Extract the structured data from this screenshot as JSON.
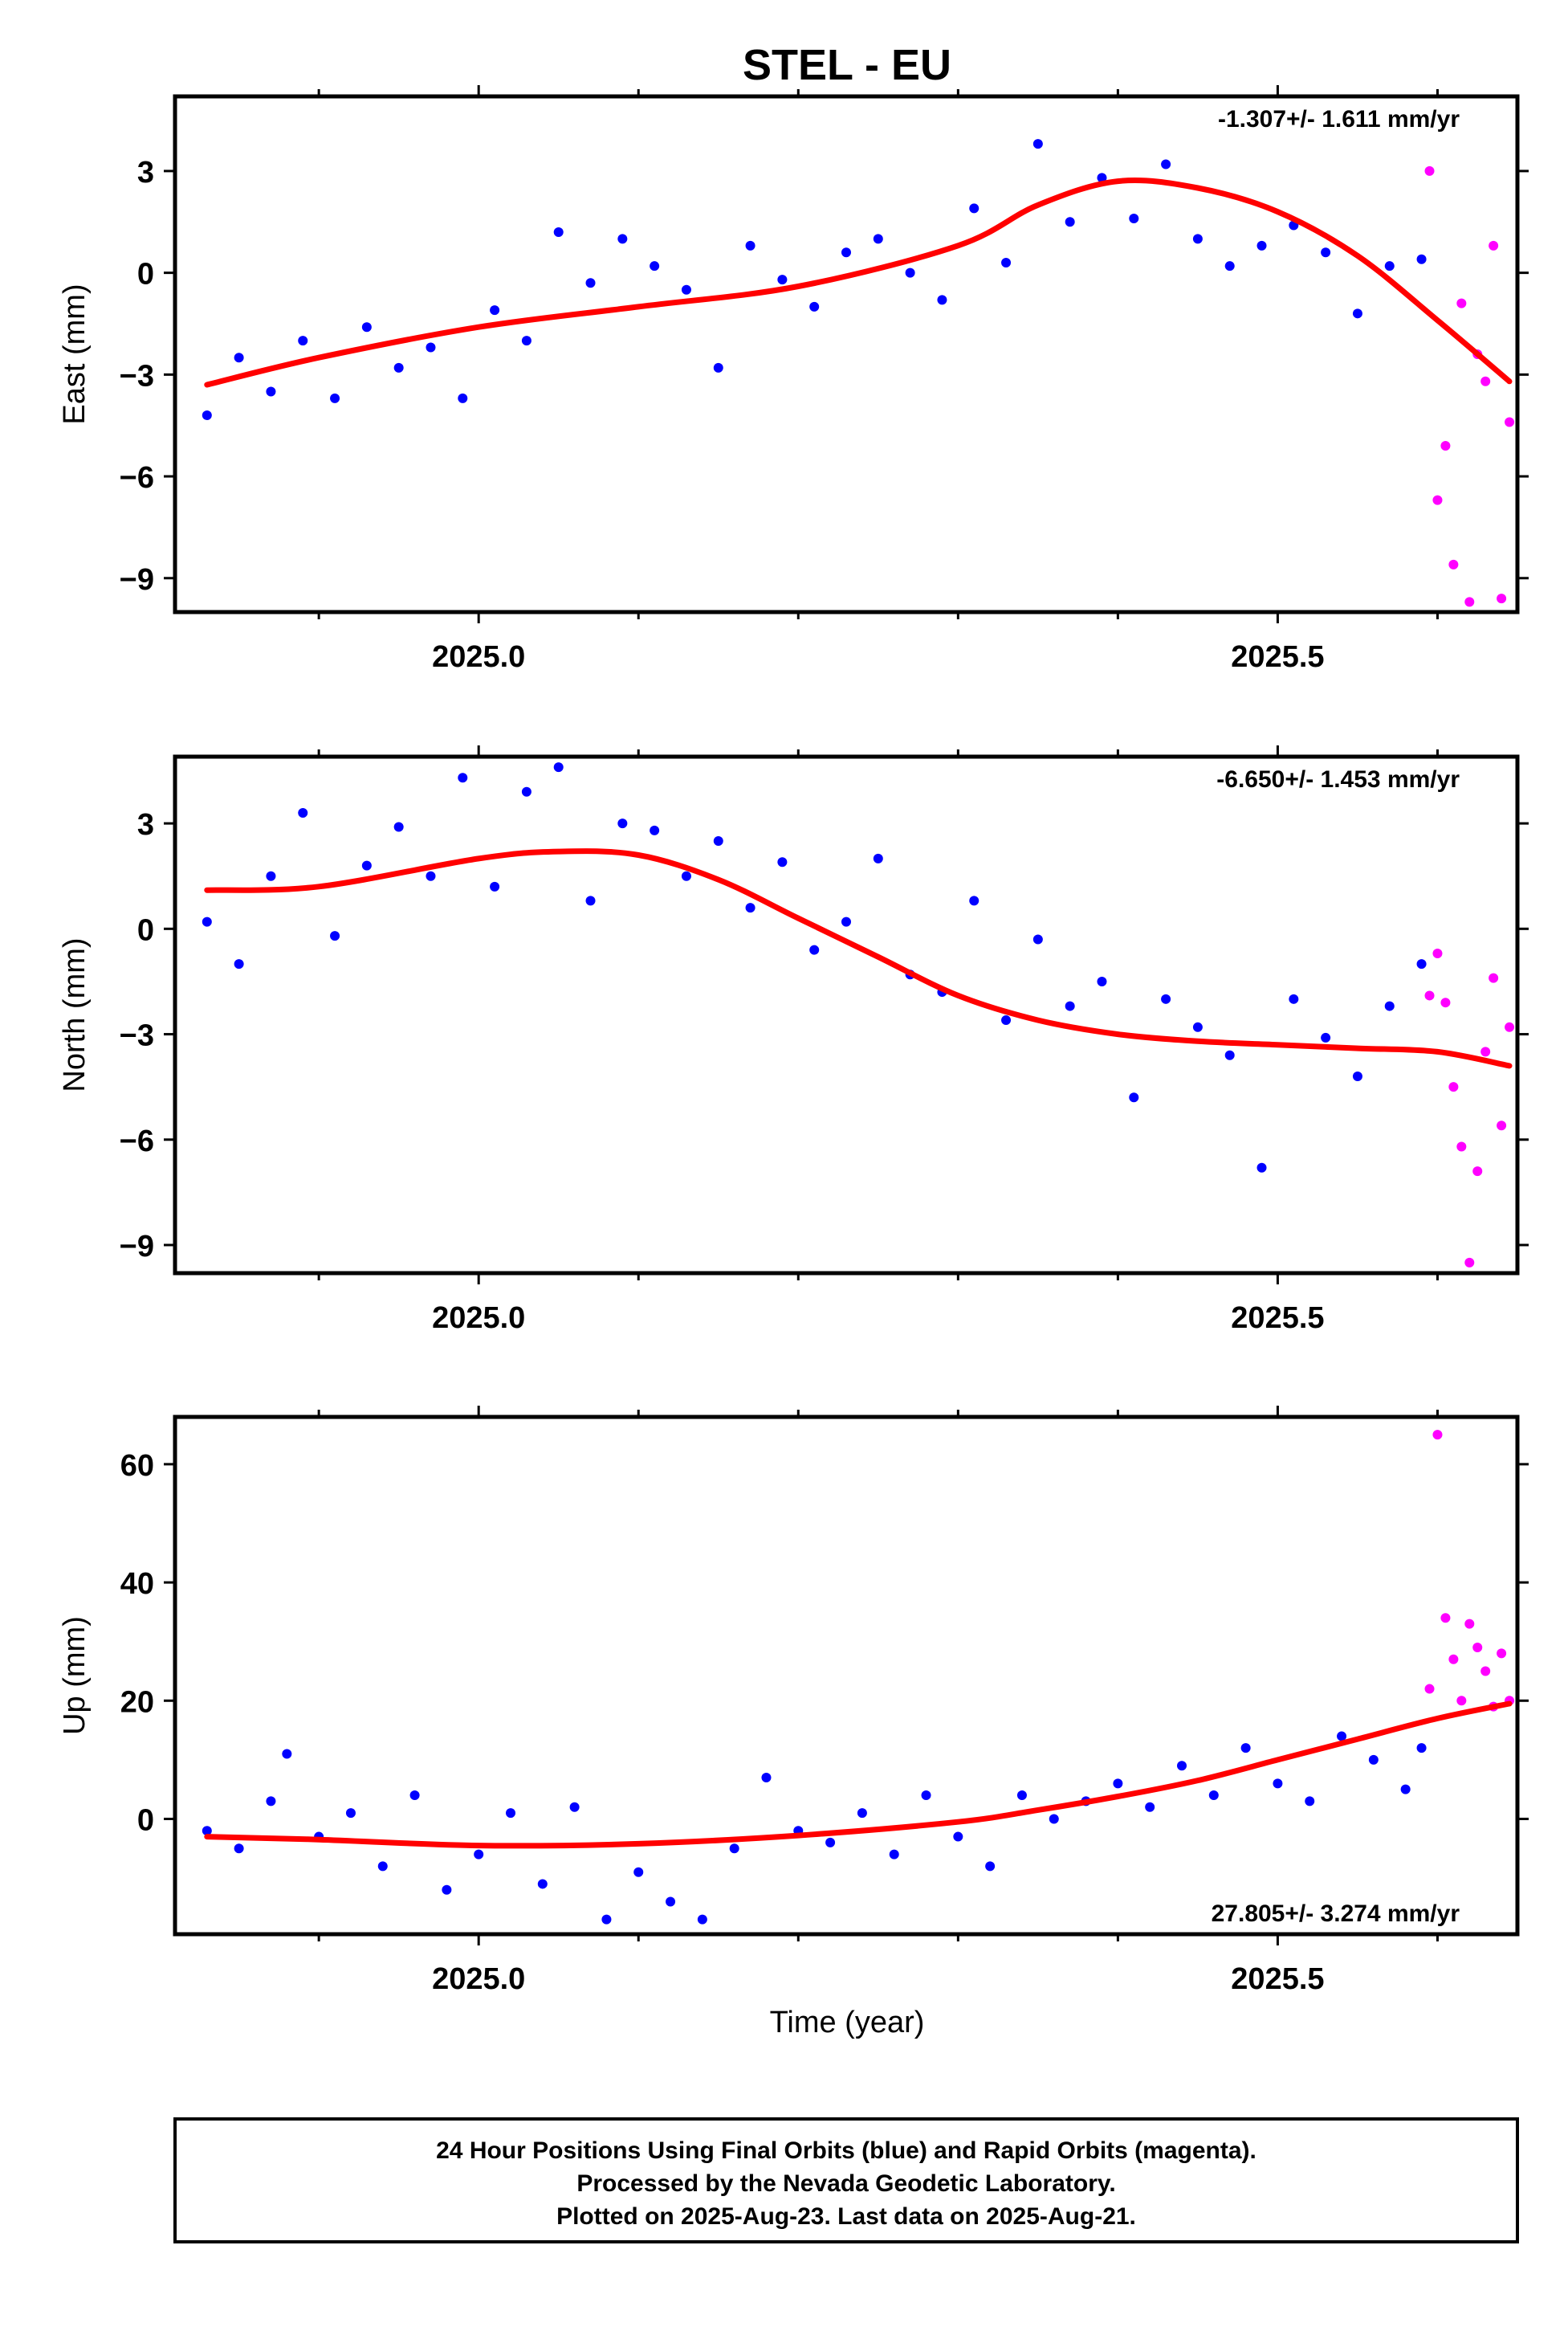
{
  "title": "STEL - EU",
  "xlabel": "Time (year)",
  "colors": {
    "final": "#0000ff",
    "rapid": "#ff00ff",
    "fit": "#ff0000"
  },
  "footer": {
    "line1": "24 Hour Positions Using Final Orbits (blue) and Rapid Orbits (magenta).",
    "line2": "Processed by the Nevada Geodetic Laboratory.",
    "line3": "Plotted on 2025-Aug-23. Last data on 2025-Aug-21."
  },
  "chart_data": [
    {
      "type": "scatter",
      "ylabel": "East (mm)",
      "rate_label": "-1.307+/- 1.611 mm/yr",
      "xlim": [
        2024.81,
        2025.65
      ],
      "ylim": [
        -10.0,
        5.2
      ],
      "yticks": [
        3,
        0,
        -3,
        -6,
        -9
      ],
      "xticks_major": [
        2025.0,
        2025.5
      ],
      "xticks_minor": [
        2024.9,
        2025.1,
        2025.2,
        2025.3,
        2025.4,
        2025.6
      ],
      "fit": {
        "x": [
          2024.83,
          2024.9,
          2025.0,
          2025.1,
          2025.2,
          2025.3,
          2025.35,
          2025.4,
          2025.45,
          2025.5,
          2025.55,
          2025.6,
          2025.645
        ],
        "y": [
          -3.3,
          -2.5,
          -1.6,
          -1.0,
          -0.4,
          0.8,
          2.0,
          2.7,
          2.5,
          1.8,
          0.5,
          -1.4,
          -3.2
        ]
      },
      "final": {
        "x": [
          2024.83,
          2024.85,
          2024.87,
          2024.89,
          2024.91,
          2024.93,
          2024.95,
          2024.97,
          2024.99,
          2025.01,
          2025.03,
          2025.05,
          2025.07,
          2025.09,
          2025.11,
          2025.13,
          2025.15,
          2025.17,
          2025.19,
          2025.21,
          2025.23,
          2025.25,
          2025.27,
          2025.29,
          2025.31,
          2025.33,
          2025.35,
          2025.37,
          2025.39,
          2025.41,
          2025.43,
          2025.45,
          2025.47,
          2025.49,
          2025.51,
          2025.53,
          2025.55,
          2025.57,
          2025.59
        ],
        "y": [
          -4.2,
          -2.5,
          -3.5,
          -2.0,
          -3.7,
          -1.6,
          -2.8,
          -2.2,
          -3.7,
          -1.1,
          -2.0,
          1.2,
          -0.3,
          1.0,
          0.2,
          -0.5,
          -2.8,
          0.8,
          -0.2,
          -1.0,
          0.6,
          1.0,
          0.0,
          -0.8,
          1.9,
          0.3,
          3.8,
          1.5,
          2.8,
          1.6,
          3.2,
          1.0,
          0.2,
          0.8,
          1.4,
          0.6,
          -1.2,
          0.2,
          0.4
        ]
      },
      "rapid": {
        "x": [
          2025.595,
          2025.6,
          2025.605,
          2025.61,
          2025.615,
          2025.62,
          2025.625,
          2025.63,
          2025.635,
          2025.64,
          2025.645
        ],
        "y": [
          3.0,
          -6.7,
          -5.1,
          -8.6,
          -0.9,
          -9.7,
          -2.4,
          -3.2,
          0.8,
          -9.6,
          -4.4
        ]
      }
    },
    {
      "type": "scatter",
      "ylabel": "North (mm)",
      "rate_label": "-6.650+/- 1.453 mm/yr",
      "xlim": [
        2024.81,
        2025.65
      ],
      "ylim": [
        -9.8,
        4.9
      ],
      "yticks": [
        3,
        0,
        -3,
        -6,
        -9
      ],
      "xticks_major": [
        2025.0,
        2025.5
      ],
      "xticks_minor": [
        2024.9,
        2025.1,
        2025.2,
        2025.3,
        2025.4,
        2025.6
      ],
      "fit": {
        "x": [
          2024.83,
          2024.9,
          2025.0,
          2025.05,
          2025.1,
          2025.15,
          2025.2,
          2025.25,
          2025.3,
          2025.35,
          2025.4,
          2025.45,
          2025.5,
          2025.55,
          2025.6,
          2025.645
        ],
        "y": [
          1.1,
          1.2,
          2.0,
          2.2,
          2.1,
          1.4,
          0.3,
          -0.8,
          -1.9,
          -2.6,
          -3.0,
          -3.2,
          -3.3,
          -3.4,
          -3.5,
          -3.9
        ]
      },
      "final": {
        "x": [
          2024.83,
          2024.85,
          2024.87,
          2024.89,
          2024.91,
          2024.93,
          2024.95,
          2024.97,
          2024.99,
          2025.01,
          2025.03,
          2025.05,
          2025.07,
          2025.09,
          2025.11,
          2025.13,
          2025.15,
          2025.17,
          2025.19,
          2025.21,
          2025.23,
          2025.25,
          2025.27,
          2025.29,
          2025.31,
          2025.33,
          2025.35,
          2025.37,
          2025.39,
          2025.41,
          2025.43,
          2025.45,
          2025.47,
          2025.49,
          2025.51,
          2025.53,
          2025.55,
          2025.57,
          2025.59
        ],
        "y": [
          0.2,
          -1.0,
          1.5,
          3.3,
          -0.2,
          1.8,
          2.9,
          1.5,
          4.3,
          1.2,
          3.9,
          4.6,
          0.8,
          3.0,
          2.8,
          1.5,
          2.5,
          0.6,
          1.9,
          -0.6,
          0.2,
          2.0,
          -1.3,
          -1.8,
          0.8,
          -2.6,
          -0.3,
          -2.2,
          -1.5,
          -4.8,
          -2.0,
          -2.8,
          -3.6,
          -6.8,
          -2.0,
          -3.1,
          -4.2,
          -2.2,
          -1.0
        ]
      },
      "rapid": {
        "x": [
          2025.595,
          2025.6,
          2025.605,
          2025.61,
          2025.615,
          2025.62,
          2025.625,
          2025.63,
          2025.635,
          2025.64,
          2025.645
        ],
        "y": [
          -1.9,
          -0.7,
          -2.1,
          -4.5,
          -6.2,
          -9.5,
          -6.9,
          -3.5,
          -1.4,
          -5.6,
          -2.8
        ]
      }
    },
    {
      "type": "scatter",
      "ylabel": "Up (mm)",
      "rate_label": "27.805+/- 3.274 mm/yr",
      "xlim": [
        2024.81,
        2025.65
      ],
      "ylim": [
        -19.5,
        68.0
      ],
      "yticks": [
        60,
        40,
        20,
        0
      ],
      "xticks_major": [
        2025.0,
        2025.5
      ],
      "xticks_minor": [
        2024.9,
        2025.1,
        2025.2,
        2025.3,
        2025.4,
        2025.6
      ],
      "fit": {
        "x": [
          2024.83,
          2024.9,
          2025.0,
          2025.1,
          2025.2,
          2025.3,
          2025.35,
          2025.4,
          2025.45,
          2025.5,
          2025.55,
          2025.6,
          2025.645
        ],
        "y": [
          -3.0,
          -3.5,
          -4.5,
          -4.2,
          -2.8,
          -0.5,
          1.5,
          3.8,
          6.5,
          10.0,
          13.5,
          17.0,
          19.5
        ]
      },
      "final": {
        "x": [
          2024.83,
          2024.85,
          2024.87,
          2024.88,
          2024.9,
          2024.92,
          2024.94,
          2024.96,
          2024.98,
          2025.0,
          2025.02,
          2025.04,
          2025.06,
          2025.08,
          2025.1,
          2025.12,
          2025.14,
          2025.16,
          2025.18,
          2025.2,
          2025.22,
          2025.24,
          2025.26,
          2025.28,
          2025.3,
          2025.32,
          2025.34,
          2025.36,
          2025.38,
          2025.4,
          2025.42,
          2025.44,
          2025.46,
          2025.48,
          2025.5,
          2025.52,
          2025.54,
          2025.56,
          2025.58,
          2025.59
        ],
        "y": [
          -2.0,
          -5.0,
          3.0,
          11.0,
          -3.0,
          1.0,
          -8.0,
          4.0,
          -12.0,
          -6.0,
          1.0,
          -11.0,
          2.0,
          -17.0,
          -9.0,
          -14.0,
          -17.0,
          -5.0,
          7.0,
          -2.0,
          -4.0,
          1.0,
          -6.0,
          4.0,
          -3.0,
          -8.0,
          4.0,
          0.0,
          3.0,
          6.0,
          2.0,
          9.0,
          4.0,
          12.0,
          6.0,
          3.0,
          14.0,
          10.0,
          5.0,
          12.0
        ]
      },
      "rapid": {
        "x": [
          2025.595,
          2025.6,
          2025.605,
          2025.61,
          2025.615,
          2025.62,
          2025.625,
          2025.63,
          2025.635,
          2025.64,
          2025.645
        ],
        "y": [
          22.0,
          65.0,
          34.0,
          27.0,
          20.0,
          33.0,
          29.0,
          25.0,
          19.0,
          28.0,
          20.0
        ]
      }
    }
  ]
}
